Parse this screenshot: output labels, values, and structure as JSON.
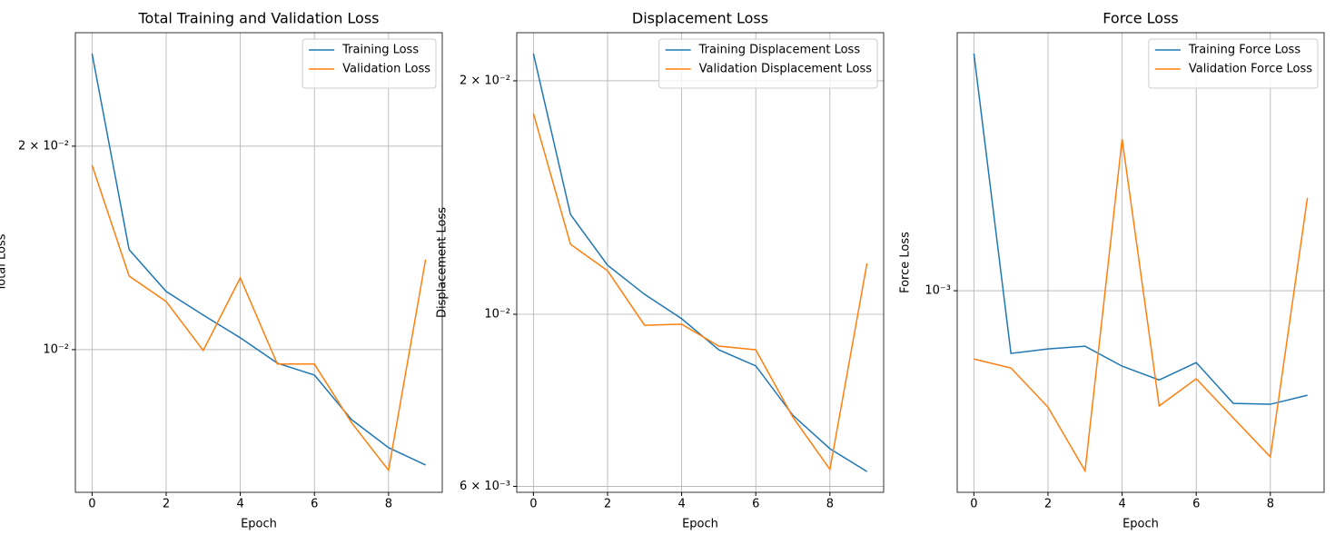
{
  "chart_data": [
    {
      "type": "line",
      "title": "Total Training and Validation Loss",
      "x_label": "Epoch",
      "y_label": "Total Loss",
      "x": [
        0,
        1,
        2,
        3,
        4,
        5,
        6,
        7,
        8,
        9
      ],
      "series": [
        {
          "name": "Training Loss",
          "color": "#1f77b4",
          "values": [
            0.02742,
            0.01406,
            0.01219,
            0.01125,
            0.01041,
            0.00955,
            0.00917,
            0.00788,
            0.00716,
            0.00675
          ]
        },
        {
          "name": "Validation Loss",
          "color": "#ff7f0e",
          "values": [
            0.01875,
            0.01285,
            0.01178,
            0.00997,
            0.01277,
            0.00952,
            0.00952,
            0.0078,
            0.00663,
            0.01359
          ]
        }
      ],
      "xlim": [
        -0.45,
        9.45
      ],
      "ylim": [
        0.00615,
        0.02944
      ],
      "xticks": [
        0,
        2,
        4,
        6,
        8
      ],
      "yticks": [
        {
          "value": 0.02,
          "label": "2 × 10⁻²"
        },
        {
          "value": 0.01,
          "label": "10⁻²"
        }
      ],
      "log_scale": true,
      "grid": true,
      "legend": "upper right"
    },
    {
      "type": "line",
      "title": "Displacement Loss",
      "x_label": "Epoch",
      "y_label": "Displacement Loss",
      "x": [
        0,
        1,
        2,
        3,
        4,
        5,
        6,
        7,
        8,
        9
      ],
      "series": [
        {
          "name": "Training Displacement Loss",
          "color": "#1f77b4",
          "values": [
            0.02168,
            0.01345,
            0.01157,
            0.01061,
            0.00987,
            0.009,
            0.00858,
            0.00741,
            0.00671,
            0.00627
          ]
        },
        {
          "name": "Validation Displacement Loss",
          "color": "#ff7f0e",
          "values": [
            0.01815,
            0.01231,
            0.01138,
            0.00968,
            0.00971,
            0.0091,
            0.009,
            0.00737,
            0.00631,
            0.01163
          ]
        }
      ],
      "xlim": [
        -0.45,
        9.45
      ],
      "ylim": [
        0.005895,
        0.02307
      ],
      "xticks": [
        0,
        2,
        4,
        6,
        8
      ],
      "yticks": [
        {
          "value": 0.02,
          "label": "2 × 10⁻²"
        },
        {
          "value": 0.01,
          "label": "10⁻²"
        },
        {
          "value": 0.006,
          "label": "6 × 10⁻³"
        }
      ],
      "log_scale": true,
      "grid": true,
      "legend": "upper right"
    },
    {
      "type": "line",
      "title": "Force Loss",
      "x_label": "Epoch",
      "y_label": "Force Loss",
      "x": [
        0,
        1,
        2,
        3,
        4,
        5,
        6,
        7,
        8,
        9
      ],
      "series": [
        {
          "name": "Training Force Loss",
          "color": "#1f77b4",
          "values": [
            0.00236,
            0.000797,
            0.00081,
            0.000818,
            0.000761,
            0.000724,
            0.000771,
            0.000665,
            0.000663,
            0.000685
          ]
        },
        {
          "name": "Validation Force Loss",
          "color": "#ff7f0e",
          "values": [
            0.000781,
            0.000756,
            0.000656,
            0.000521,
            0.001732,
            0.000659,
            0.000727,
            0.000631,
            0.000548,
            0.0014
          ]
        }
      ],
      "xlim": [
        -0.45,
        9.45
      ],
      "ylim": [
        0.000482,
        0.002545
      ],
      "xticks": [
        0,
        2,
        4,
        6,
        8
      ],
      "yticks": [
        {
          "value": 0.001,
          "label": "10⁻³"
        }
      ],
      "log_scale": true,
      "grid": true,
      "legend": "upper right"
    }
  ]
}
